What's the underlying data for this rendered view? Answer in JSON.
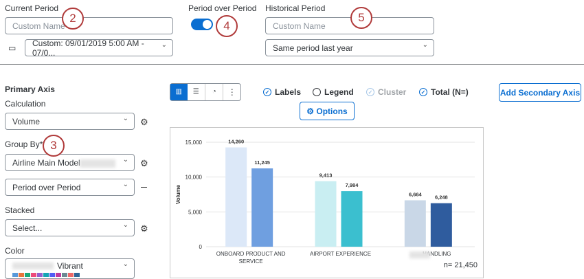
{
  "callouts": [
    "2",
    "3",
    "4",
    "5"
  ],
  "header": {
    "current_period": {
      "label": "Current Period",
      "placeholder": "Custom Name",
      "date_range": "Custom: 09/01/2019 5:00 AM - 07/0..."
    },
    "period_over_period": {
      "label": "Period over Period",
      "on": true
    },
    "historical_period": {
      "label": "Historical Period",
      "placeholder": "Custom Name",
      "comparison": "Same period last year"
    }
  },
  "sidebar": {
    "title": "Primary Axis",
    "calculation_label": "Calculation",
    "calculation": "Volume",
    "group_by_label": "Group By*",
    "group_by": "Airline Main Model",
    "group_by_2": "Period over Period",
    "stacked_label": "Stacked",
    "stacked": "Select...",
    "color_label": "Color",
    "color": "Vibrant"
  },
  "toolbar": {
    "toggles": [
      {
        "label": "Labels",
        "checked": true,
        "enabled": true
      },
      {
        "label": "Legend",
        "checked": false,
        "enabled": true
      },
      {
        "label": "Cluster",
        "checked": true,
        "enabled": false
      },
      {
        "label": "Total (N=)",
        "checked": true,
        "enabled": true
      }
    ],
    "options": "Options",
    "add_axis": "Add Secondary Axis"
  },
  "chart": {
    "type": "bar",
    "y_label": "Volume",
    "categories": [
      "ONBOARD PRODUCT AND SERVICE",
      "AIRPORT EXPERIENCE",
      "HANDLING"
    ],
    "series": [
      {
        "colors": [
          "#dce8f8",
          "#c9eef2",
          "#c9d7e7"
        ],
        "values": [
          14260,
          9413,
          6664
        ],
        "value_labels": [
          "14,260",
          "9,413",
          "6,664"
        ]
      },
      {
        "colors": [
          "#6f9fe0",
          "#3bbfcf",
          "#2f5c9e"
        ],
        "values": [
          11245,
          7984,
          6248
        ],
        "value_labels": [
          "11,245",
          "7,984",
          "6,248"
        ]
      }
    ],
    "ylim": [
      0,
      15000
    ],
    "yticks": [
      0,
      {
        "value": 5000,
        "label": "5,000"
      },
      {
        "value": 10000,
        "label": "10,000"
      },
      {
        "value": 15000,
        "label": "15,000"
      }
    ],
    "grid": true,
    "total": "n= 21,450"
  }
}
